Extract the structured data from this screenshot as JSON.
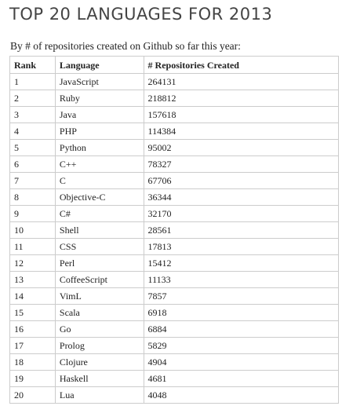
{
  "title": "TOP 20 LANGUAGES FOR 2013",
  "subtitle": "By # of repositories created on Github so far this year:",
  "table": {
    "headers": [
      "Rank",
      "Language",
      "# Repositories Created"
    ],
    "rows": [
      [
        "1",
        "JavaScript",
        "264131"
      ],
      [
        "2",
        "Ruby",
        "218812"
      ],
      [
        "3",
        "Java",
        "157618"
      ],
      [
        "4",
        "PHP",
        "114384"
      ],
      [
        "5",
        "Python",
        "95002"
      ],
      [
        "6",
        "C++",
        "78327"
      ],
      [
        "7",
        "C",
        "67706"
      ],
      [
        "8",
        "Objective-C",
        "36344"
      ],
      [
        "9",
        "C#",
        "32170"
      ],
      [
        "10",
        "Shell",
        "28561"
      ],
      [
        "11",
        "CSS",
        "17813"
      ],
      [
        "12",
        "Perl",
        "15412"
      ],
      [
        "13",
        "CoffeeScript",
        "11133"
      ],
      [
        "14",
        "VimL",
        "7857"
      ],
      [
        "15",
        "Scala",
        "6918"
      ],
      [
        "16",
        "Go",
        "6884"
      ],
      [
        "17",
        "Prolog",
        "5829"
      ],
      [
        "18",
        "Clojure",
        "4904"
      ],
      [
        "19",
        "Haskell",
        "4681"
      ],
      [
        "20",
        "Lua",
        "4048"
      ]
    ]
  },
  "colors": {
    "title": "#444444",
    "text": "#222222",
    "border": "#cccccc",
    "background": "#ffffff"
  }
}
